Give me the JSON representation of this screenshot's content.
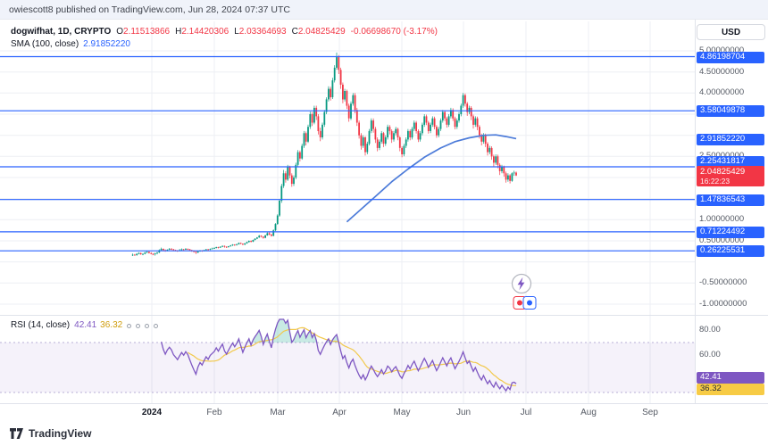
{
  "attribution": "owiescott8 published on TradingView.com, Jun 28, 2024 07:37 UTC",
  "legend": {
    "symbol": "dogwifhat, 1D, CRYPTO",
    "o_label": "O",
    "o": "2.11513866",
    "h_label": "H",
    "h": "2.14420306",
    "l_label": "L",
    "l": "2.03364693",
    "c_label": "C",
    "c": "2.04825429",
    "change": "-0.06698670 (-3.17%)",
    "sma_label": "SMA (100, close)",
    "sma_value": "2.91852220"
  },
  "rsi_legend": {
    "label": "RSI (14, close)",
    "value": "42.41",
    "ma": "36.32"
  },
  "currency_button": "USD",
  "footer": {
    "brand": "TradingView"
  },
  "colors": {
    "up": "#089981",
    "down": "#f23645",
    "line_blue": "#2962ff",
    "sma": "#4c7bd9",
    "rsi": "#7e57c2",
    "rsi_ma": "#f2c94c",
    "badge_red": "#f23645",
    "grid": "#edeff4",
    "separator": "#e0e3eb",
    "axis_text": "#555a64"
  },
  "chart_data": {
    "type": "candlestick",
    "title": "dogwifhat, 1D, CRYPTO",
    "price_format": "fixed8",
    "time_axis": {
      "labels": [
        "2024",
        "Feb",
        "Mar",
        "Apr",
        "May",
        "Jun",
        "Jul",
        "Aug",
        "Sep"
      ]
    },
    "price_pane": {
      "grid_prices": [
        5,
        4.5,
        4,
        3.5,
        3,
        2.5,
        2,
        1.5,
        1,
        0.5,
        0,
        -0.5,
        -1
      ],
      "axis_tick_prices": [
        5,
        4.5,
        4,
        2.5,
        1,
        0.5,
        -0.5,
        -1
      ],
      "horizontal_lines": [
        4.86198704,
        3.58049878,
        2.25431817,
        1.47836543,
        0.71224492,
        0.26225531
      ],
      "sma100_points": [
        [
          105,
          0.95
        ],
        [
          112,
          1.25
        ],
        [
          119,
          1.55
        ],
        [
          127,
          1.9
        ],
        [
          135,
          2.2
        ],
        [
          143,
          2.48
        ],
        [
          151,
          2.7
        ],
        [
          158,
          2.85
        ],
        [
          165,
          2.94
        ],
        [
          172,
          3.0
        ],
        [
          178,
          3.01
        ],
        [
          183,
          2.97
        ],
        [
          188,
          2.92
        ]
      ],
      "sma100_last": 2.9185222,
      "last_price": 2.04825429,
      "countdown": "16:22:23",
      "candles_ohlc": [
        [
          0.16,
          0.2,
          0.14,
          0.17
        ],
        [
          0.17,
          0.19,
          0.15,
          0.16
        ],
        [
          0.16,
          0.21,
          0.15,
          0.19
        ],
        [
          0.19,
          0.23,
          0.18,
          0.21
        ],
        [
          0.21,
          0.22,
          0.17,
          0.18
        ],
        [
          0.18,
          0.21,
          0.16,
          0.19
        ],
        [
          0.19,
          0.24,
          0.18,
          0.22
        ],
        [
          0.22,
          0.26,
          0.21,
          0.24
        ],
        [
          0.24,
          0.25,
          0.2,
          0.21
        ],
        [
          0.21,
          0.23,
          0.18,
          0.19
        ],
        [
          0.19,
          0.21,
          0.16,
          0.18
        ],
        [
          0.18,
          0.22,
          0.15,
          0.2
        ],
        [
          0.2,
          0.24,
          0.18,
          0.22
        ],
        [
          0.22,
          0.3,
          0.21,
          0.28
        ],
        [
          0.28,
          0.34,
          0.26,
          0.31
        ],
        [
          0.31,
          0.32,
          0.26,
          0.28
        ],
        [
          0.28,
          0.3,
          0.24,
          0.26
        ],
        [
          0.26,
          0.3,
          0.25,
          0.29
        ],
        [
          0.29,
          0.33,
          0.28,
          0.31
        ],
        [
          0.31,
          0.33,
          0.28,
          0.3
        ],
        [
          0.3,
          0.31,
          0.26,
          0.28
        ],
        [
          0.28,
          0.29,
          0.25,
          0.27
        ],
        [
          0.27,
          0.28,
          0.24,
          0.26
        ],
        [
          0.26,
          0.31,
          0.25,
          0.28
        ],
        [
          0.28,
          0.32,
          0.26,
          0.3
        ],
        [
          0.3,
          0.31,
          0.27,
          0.29
        ],
        [
          0.29,
          0.33,
          0.28,
          0.31
        ],
        [
          0.31,
          0.32,
          0.28,
          0.3
        ],
        [
          0.3,
          0.31,
          0.26,
          0.28
        ],
        [
          0.28,
          0.29,
          0.24,
          0.26
        ],
        [
          0.26,
          0.27,
          0.22,
          0.24
        ],
        [
          0.24,
          0.26,
          0.19,
          0.22
        ],
        [
          0.22,
          0.26,
          0.21,
          0.25
        ],
        [
          0.25,
          0.28,
          0.24,
          0.27
        ],
        [
          0.27,
          0.28,
          0.24,
          0.26
        ],
        [
          0.26,
          0.29,
          0.25,
          0.28
        ],
        [
          0.28,
          0.31,
          0.27,
          0.3
        ],
        [
          0.3,
          0.31,
          0.27,
          0.29
        ],
        [
          0.29,
          0.32,
          0.28,
          0.31
        ],
        [
          0.31,
          0.34,
          0.3,
          0.32
        ],
        [
          0.32,
          0.35,
          0.31,
          0.33
        ],
        [
          0.33,
          0.36,
          0.32,
          0.35
        ],
        [
          0.35,
          0.36,
          0.32,
          0.34
        ],
        [
          0.34,
          0.37,
          0.33,
          0.36
        ],
        [
          0.36,
          0.39,
          0.35,
          0.38
        ],
        [
          0.38,
          0.39,
          0.34,
          0.36
        ],
        [
          0.36,
          0.37,
          0.33,
          0.35
        ],
        [
          0.35,
          0.38,
          0.34,
          0.37
        ],
        [
          0.37,
          0.4,
          0.36,
          0.39
        ],
        [
          0.39,
          0.42,
          0.38,
          0.41
        ],
        [
          0.41,
          0.42,
          0.38,
          0.4
        ],
        [
          0.4,
          0.43,
          0.39,
          0.42
        ],
        [
          0.42,
          0.46,
          0.41,
          0.45
        ],
        [
          0.45,
          0.46,
          0.42,
          0.43
        ],
        [
          0.43,
          0.44,
          0.4,
          0.41
        ],
        [
          0.41,
          0.45,
          0.4,
          0.44
        ],
        [
          0.44,
          0.48,
          0.43,
          0.47
        ],
        [
          0.47,
          0.51,
          0.46,
          0.5
        ],
        [
          0.5,
          0.51,
          0.46,
          0.48
        ],
        [
          0.48,
          0.53,
          0.47,
          0.52
        ],
        [
          0.52,
          0.56,
          0.51,
          0.55
        ],
        [
          0.55,
          0.59,
          0.54,
          0.58
        ],
        [
          0.58,
          0.64,
          0.57,
          0.62
        ],
        [
          0.62,
          0.63,
          0.58,
          0.6
        ],
        [
          0.6,
          0.61,
          0.55,
          0.57
        ],
        [
          0.57,
          0.64,
          0.56,
          0.63
        ],
        [
          0.63,
          0.7,
          0.62,
          0.68
        ],
        [
          0.68,
          0.7,
          0.63,
          0.65
        ],
        [
          0.65,
          0.66,
          0.6,
          0.62
        ],
        [
          0.62,
          0.77,
          0.61,
          0.75
        ],
        [
          0.75,
          0.92,
          0.73,
          0.9
        ],
        [
          0.9,
          1.13,
          0.88,
          1.1
        ],
        [
          1.1,
          1.48,
          1.07,
          1.45
        ],
        [
          1.45,
          1.85,
          1.4,
          1.8
        ],
        [
          1.8,
          2.18,
          1.75,
          2.1
        ],
        [
          2.1,
          2.15,
          1.88,
          1.95
        ],
        [
          1.95,
          2.3,
          1.92,
          2.25
        ],
        [
          2.25,
          2.28,
          1.98,
          2.05
        ],
        [
          2.05,
          2.1,
          1.78,
          1.85
        ],
        [
          1.85,
          2.05,
          1.8,
          2.0
        ],
        [
          2.0,
          2.35,
          1.96,
          2.3
        ],
        [
          2.3,
          2.65,
          2.26,
          2.6
        ],
        [
          2.6,
          2.64,
          2.38,
          2.45
        ],
        [
          2.45,
          2.8,
          2.42,
          2.75
        ],
        [
          2.75,
          3.1,
          2.7,
          3.05
        ],
        [
          3.05,
          3.09,
          2.76,
          2.85
        ],
        [
          2.85,
          3.25,
          2.82,
          3.2
        ],
        [
          3.2,
          3.56,
          3.15,
          3.5
        ],
        [
          3.5,
          3.55,
          3.22,
          3.3
        ],
        [
          3.3,
          3.7,
          3.26,
          3.65
        ],
        [
          3.65,
          3.7,
          3.36,
          3.45
        ],
        [
          3.45,
          3.5,
          3.02,
          3.1
        ],
        [
          3.1,
          3.18,
          2.86,
          2.95
        ],
        [
          2.95,
          3.3,
          2.9,
          3.25
        ],
        [
          3.25,
          3.6,
          3.2,
          3.55
        ],
        [
          3.55,
          3.9,
          3.5,
          3.85
        ],
        [
          3.85,
          4.16,
          3.8,
          4.1
        ],
        [
          4.1,
          4.15,
          3.82,
          3.9
        ],
        [
          3.9,
          4.36,
          3.86,
          4.3
        ],
        [
          4.3,
          4.66,
          4.25,
          4.6
        ],
        [
          4.6,
          4.96,
          4.55,
          4.85
        ],
        [
          4.85,
          4.9,
          4.45,
          4.55
        ],
        [
          4.55,
          4.6,
          4.1,
          4.2
        ],
        [
          4.2,
          4.25,
          3.76,
          3.85
        ],
        [
          3.85,
          4.1,
          3.8,
          4.05
        ],
        [
          4.05,
          4.08,
          3.62,
          3.7
        ],
        [
          3.7,
          3.75,
          3.32,
          3.4
        ],
        [
          3.4,
          3.8,
          3.36,
          3.75
        ],
        [
          3.75,
          4.0,
          3.7,
          3.95
        ],
        [
          3.95,
          4.0,
          3.52,
          3.6
        ],
        [
          3.6,
          3.65,
          3.22,
          3.3
        ],
        [
          3.3,
          3.35,
          2.92,
          3.0
        ],
        [
          3.0,
          3.05,
          2.66,
          2.75
        ],
        [
          2.75,
          3.0,
          2.7,
          2.95
        ],
        [
          2.95,
          2.98,
          2.52,
          2.6
        ],
        [
          2.6,
          2.85,
          2.55,
          2.8
        ],
        [
          2.8,
          3.15,
          2.76,
          3.1
        ],
        [
          3.1,
          3.4,
          3.05,
          3.35
        ],
        [
          3.35,
          3.4,
          3.06,
          3.15
        ],
        [
          3.15,
          3.2,
          2.82,
          2.9
        ],
        [
          2.9,
          2.95,
          2.62,
          2.7
        ],
        [
          2.7,
          2.9,
          2.65,
          2.85
        ],
        [
          2.85,
          3.1,
          2.8,
          3.05
        ],
        [
          3.05,
          3.08,
          2.72,
          2.8
        ],
        [
          2.8,
          3.0,
          2.75,
          2.95
        ],
        [
          2.95,
          3.25,
          2.9,
          3.2
        ],
        [
          3.2,
          3.24,
          3.02,
          3.1
        ],
        [
          3.1,
          3.14,
          2.82,
          2.9
        ],
        [
          2.9,
          3.1,
          2.85,
          3.05
        ],
        [
          3.05,
          3.2,
          3.0,
          3.15
        ],
        [
          3.15,
          3.18,
          2.88,
          2.95
        ],
        [
          2.95,
          2.98,
          2.62,
          2.7
        ],
        [
          2.7,
          2.74,
          2.48,
          2.55
        ],
        [
          2.55,
          2.8,
          2.5,
          2.75
        ],
        [
          2.75,
          2.95,
          2.7,
          2.9
        ],
        [
          2.9,
          3.15,
          2.85,
          3.1
        ],
        [
          3.1,
          3.14,
          2.88,
          2.95
        ],
        [
          2.95,
          3.2,
          2.9,
          3.15
        ],
        [
          3.15,
          3.35,
          3.1,
          3.3
        ],
        [
          3.3,
          3.34,
          3.04,
          3.1
        ],
        [
          3.1,
          3.14,
          2.84,
          2.9
        ],
        [
          2.9,
          3.1,
          2.85,
          3.05
        ],
        [
          3.05,
          3.3,
          3.0,
          3.25
        ],
        [
          3.25,
          3.5,
          3.2,
          3.45
        ],
        [
          3.45,
          3.49,
          3.24,
          3.3
        ],
        [
          3.3,
          3.34,
          3.04,
          3.1
        ],
        [
          3.1,
          3.3,
          3.05,
          3.25
        ],
        [
          3.25,
          3.45,
          3.2,
          3.4
        ],
        [
          3.4,
          3.44,
          3.14,
          3.2
        ],
        [
          3.2,
          3.24,
          2.94,
          3.0
        ],
        [
          3.0,
          3.2,
          2.95,
          3.15
        ],
        [
          3.15,
          3.4,
          3.1,
          3.35
        ],
        [
          3.35,
          3.6,
          3.3,
          3.55
        ],
        [
          3.55,
          3.59,
          3.34,
          3.4
        ],
        [
          3.4,
          3.44,
          3.18,
          3.25
        ],
        [
          3.25,
          3.5,
          3.2,
          3.45
        ],
        [
          3.45,
          3.65,
          3.4,
          3.6
        ],
        [
          3.6,
          3.64,
          3.34,
          3.4
        ],
        [
          3.4,
          3.44,
          3.14,
          3.2
        ],
        [
          3.2,
          3.4,
          3.15,
          3.35
        ],
        [
          3.35,
          3.55,
          3.3,
          3.5
        ],
        [
          3.5,
          3.75,
          3.45,
          3.7
        ],
        [
          3.7,
          4.0,
          3.65,
          3.95
        ],
        [
          3.95,
          3.99,
          3.68,
          3.75
        ],
        [
          3.75,
          3.79,
          3.46,
          3.55
        ],
        [
          3.55,
          3.7,
          3.5,
          3.65
        ],
        [
          3.65,
          3.69,
          3.36,
          3.45
        ],
        [
          3.45,
          3.49,
          3.16,
          3.25
        ],
        [
          3.25,
          3.45,
          3.2,
          3.4
        ],
        [
          3.4,
          3.44,
          3.12,
          3.2
        ],
        [
          3.2,
          3.24,
          2.92,
          3.0
        ],
        [
          3.0,
          3.04,
          2.76,
          2.85
        ],
        [
          2.85,
          3.05,
          2.8,
          3.0
        ],
        [
          3.0,
          3.04,
          2.72,
          2.8
        ],
        [
          2.8,
          2.84,
          2.52,
          2.6
        ],
        [
          2.6,
          2.75,
          2.55,
          2.7
        ],
        [
          2.7,
          2.74,
          2.42,
          2.5
        ],
        [
          2.5,
          2.54,
          2.26,
          2.35
        ],
        [
          2.35,
          2.55,
          2.3,
          2.5
        ],
        [
          2.5,
          2.54,
          2.22,
          2.3
        ],
        [
          2.3,
          2.34,
          2.06,
          2.15
        ],
        [
          2.15,
          2.3,
          2.1,
          2.25
        ],
        [
          2.25,
          2.28,
          2.02,
          2.1
        ],
        [
          2.1,
          2.14,
          1.88,
          1.95
        ],
        [
          1.95,
          2.1,
          1.9,
          2.05
        ],
        [
          2.05,
          2.08,
          1.86,
          1.92
        ],
        [
          1.92,
          2.12,
          1.9,
          2.1
        ],
        [
          2.1,
          2.16,
          2.04,
          2.115
        ],
        [
          2.115,
          2.14420306,
          2.03364693,
          2.04825429
        ]
      ]
    },
    "rsi_pane": {
      "period": 14,
      "axis_ticks": [
        80,
        60
      ],
      "overbought": 70,
      "oversold": 30,
      "last": 42.41,
      "ma_last": 36.32
    }
  }
}
